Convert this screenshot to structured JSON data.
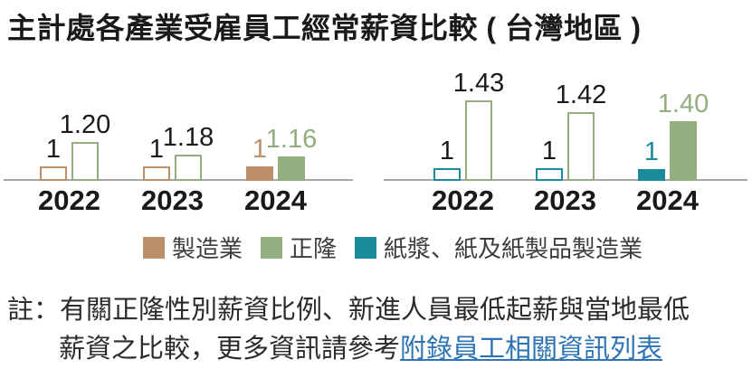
{
  "page": {
    "title": "主計處各產業受雇員工經常薪資比較 ( 台灣地區 )"
  },
  "chart_data": [
    {
      "type": "bar",
      "name": "manufacturing-vs-chengloong",
      "categories": [
        "2022",
        "2023",
        "2024"
      ],
      "series": [
        {
          "name": "製造業",
          "color": "#bd8f69",
          "values": [
            1,
            1,
            1
          ],
          "labels": [
            "1",
            "1",
            "1"
          ]
        },
        {
          "name": "正隆",
          "color": "#92ae7e",
          "values": [
            1.2,
            1.18,
            1.16
          ],
          "labels": [
            "1.20",
            "1.18",
            "1.16"
          ]
        }
      ],
      "highlight_category": "2024",
      "y_axis_visible": false,
      "grid": false
    },
    {
      "type": "bar",
      "name": "paper-industry-vs-chengloong",
      "categories": [
        "2022",
        "2023",
        "2024"
      ],
      "series": [
        {
          "name": "紙漿、紙及紙製品製造業",
          "color": "#1b8a9b",
          "values": [
            1,
            1,
            1
          ],
          "labels": [
            "1",
            "1",
            "1"
          ]
        },
        {
          "name": "正隆",
          "color": "#92ae7e",
          "values": [
            1.43,
            1.42,
            1.4
          ],
          "labels": [
            "1.43",
            "1.42",
            "1.40"
          ]
        }
      ],
      "highlight_category": "2024",
      "y_axis_visible": false,
      "grid": false
    }
  ],
  "legend": {
    "items": [
      {
        "label": "製造業",
        "color": "#bd8f69"
      },
      {
        "label": "正隆",
        "color": "#92ae7e"
      },
      {
        "label": "紙漿、紙及紙製品製造業",
        "color": "#1b8a9b"
      }
    ]
  },
  "note": {
    "line1": "註：有關正隆性別薪資比例、新進人員最低起薪與當地最低",
    "line2_text": "薪資之比較，更多資訊請參考",
    "link_text": "附錄員工相關資訊列表"
  },
  "colors": {
    "axis": "#a6a6a6",
    "label_black": "#1a1a1a",
    "link_blue": "#2e74b5"
  }
}
